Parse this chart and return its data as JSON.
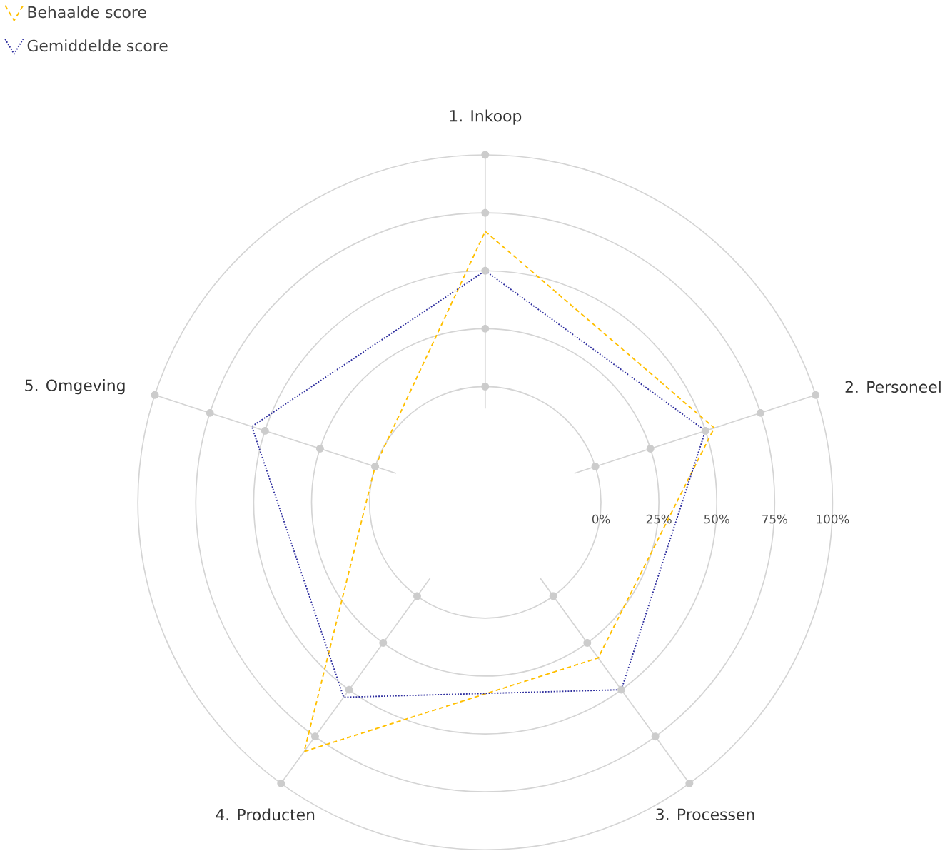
{
  "chart_data": {
    "type": "radar",
    "categories": [
      "1. Inkoop",
      "2. Personeel",
      "3. Processen",
      "4. Producten",
      "5. Omgeving"
    ],
    "series": [
      {
        "name": "Behaalde score",
        "color": "#ffbf00",
        "line_style": "dashed",
        "values": [
          67,
          54,
          33,
          83,
          0
        ]
      },
      {
        "name": "Gemiddelde score",
        "color": "#2e2e9e",
        "line_style": "dotted",
        "values": [
          50,
          50,
          50,
          54,
          56
        ]
      }
    ],
    "ylim": [
      -50,
      100
    ],
    "yticks": [
      {
        "value": 0,
        "label": "0%"
      },
      {
        "value": 25,
        "label": "25%"
      },
      {
        "value": 50,
        "label": "50%"
      },
      {
        "value": 75,
        "label": "75%"
      },
      {
        "value": 100,
        "label": "100%"
      }
    ],
    "grid": true,
    "legend": "top left",
    "marker": "none"
  }
}
